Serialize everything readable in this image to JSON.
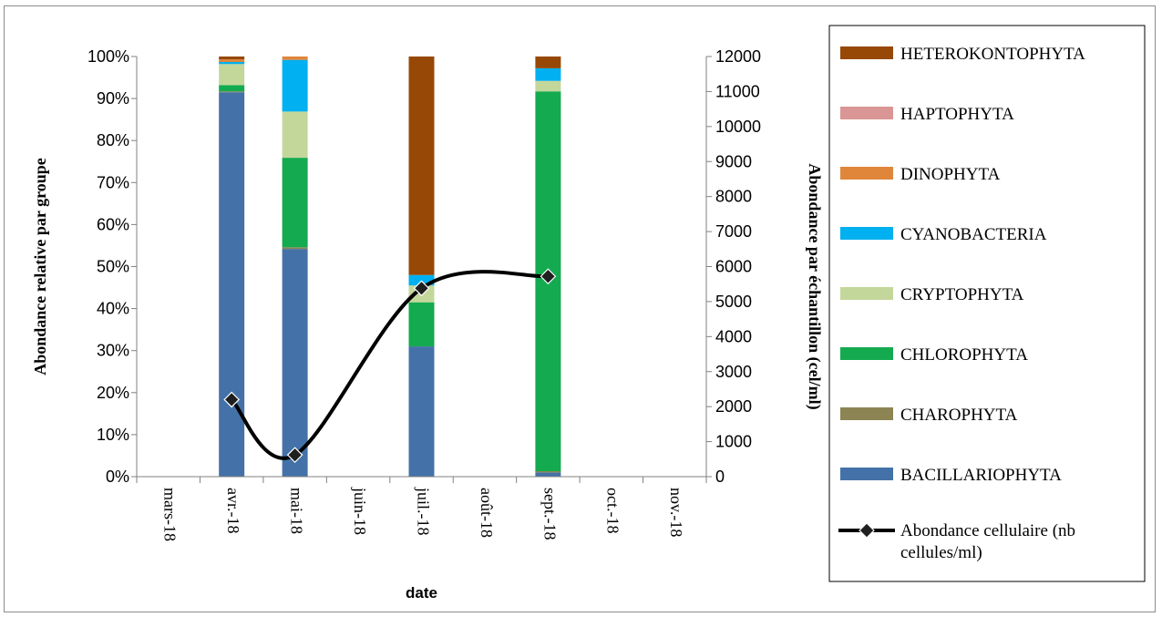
{
  "chart_data": {
    "type": "bar",
    "stacked": true,
    "percent_stacked": true,
    "xlabel": "date",
    "ylabel": "Abondance relative par groupe",
    "y2label": "Abondance par échantillon (cel/ml)",
    "ylim": [
      0,
      100
    ],
    "y2lim": [
      0,
      12000
    ],
    "yticks": [
      "0%",
      "10%",
      "20%",
      "30%",
      "40%",
      "50%",
      "60%",
      "70%",
      "80%",
      "90%",
      "100%"
    ],
    "y2ticks": [
      "0",
      "1000",
      "2000",
      "3000",
      "4000",
      "5000",
      "6000",
      "7000",
      "8000",
      "9000",
      "10000",
      "11000",
      "12000"
    ],
    "categories": [
      "mars-18",
      "avr.-18",
      "mai-18",
      "juin-18",
      "juil.-18",
      "août-18",
      "sept.-18",
      "oct.-18",
      "nov.-18"
    ],
    "series": [
      {
        "name": "BACILLARIOPHYTA",
        "color": "#4472a8",
        "values": [
          null,
          91.5,
          54.2,
          null,
          31.0,
          null,
          1.0,
          null,
          null
        ]
      },
      {
        "name": "CHAROPHYTA",
        "color": "#8c8452",
        "values": [
          null,
          0.2,
          0.4,
          null,
          0.0,
          null,
          0.3,
          null,
          null
        ]
      },
      {
        "name": "CHLOROPHYTA",
        "color": "#14aa50",
        "values": [
          null,
          1.5,
          21.3,
          null,
          10.5,
          null,
          90.4,
          null,
          null
        ]
      },
      {
        "name": "CRYPTOPHYTA",
        "color": "#c4d79b",
        "values": [
          null,
          5.0,
          11.0,
          null,
          4.0,
          null,
          2.5,
          null,
          null
        ]
      },
      {
        "name": "CYANOBACTERIA",
        "color": "#00b0f0",
        "values": [
          null,
          0.5,
          12.3,
          null,
          2.5,
          null,
          3.0,
          null,
          null
        ]
      },
      {
        "name": "DINOPHYTA",
        "color": "#e0863a",
        "values": [
          null,
          0.6,
          0.8,
          null,
          0.0,
          null,
          0.0,
          null,
          null
        ]
      },
      {
        "name": "HAPTOPHYTA",
        "color": "#d99694",
        "values": [
          null,
          0.0,
          0.0,
          null,
          0.0,
          null,
          0.0,
          null,
          null
        ]
      },
      {
        "name": "HETEROKONTOPHYTA",
        "color": "#974806",
        "values": [
          null,
          0.7,
          0.0,
          null,
          52.0,
          null,
          2.8,
          null,
          null
        ]
      }
    ],
    "line": {
      "name": "Abondance cellulaire (nb cellules/ml)",
      "color": "#000000",
      "marker_color": "#1f1f1f",
      "values": [
        null,
        2200,
        620,
        null,
        5380,
        null,
        5720,
        null,
        null
      ]
    },
    "legend_position": "right",
    "legend_order": [
      "HETEROKONTOPHYTA",
      "HAPTOPHYTA",
      "DINOPHYTA",
      "CYANOBACTERIA",
      "CRYPTOPHYTA",
      "CHLOROPHYTA",
      "CHAROPHYTA",
      "BACILLARIOPHYTA",
      "Abondance cellulaire (nb cellules/ml)"
    ],
    "grid": false
  }
}
